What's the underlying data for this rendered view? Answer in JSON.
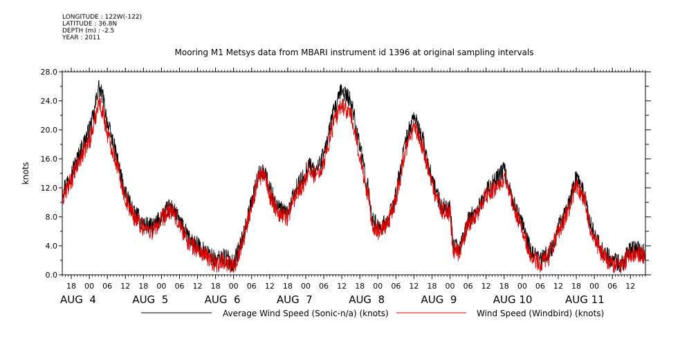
{
  "meta": {
    "longitude": "LONGITUDE : 122W(-122)",
    "latitude": "LATITUDE : 36.8N",
    "depth": "DEPTH (m) : -2.5",
    "year": "YEAR : 2011"
  },
  "chart_data": {
    "type": "line",
    "title": "Mooring M1 Metsys data from MBARI instrument id 1396 at original sampling intervals",
    "ylabel": "knots",
    "ylim": [
      0,
      28
    ],
    "yticks": [
      0,
      4,
      8,
      12,
      16,
      20,
      24,
      28
    ],
    "ytick_labels": [
      "0.0",
      "4.0",
      "8.0",
      "12.0",
      "16.0",
      "20.0",
      "24.0",
      "28.0"
    ],
    "xlim": [
      "2011-08-03T15:00",
      "2011-08-11T17:00"
    ],
    "x_hour_ticks": [
      {
        "time": "2011-08-03T18:00",
        "label": "18"
      },
      {
        "time": "2011-08-04T00:00",
        "label": "00"
      },
      {
        "time": "2011-08-04T06:00",
        "label": "06"
      },
      {
        "time": "2011-08-04T12:00",
        "label": "12"
      },
      {
        "time": "2011-08-04T18:00",
        "label": "18"
      },
      {
        "time": "2011-08-05T00:00",
        "label": "00"
      },
      {
        "time": "2011-08-05T06:00",
        "label": "06"
      },
      {
        "time": "2011-08-05T12:00",
        "label": "12"
      },
      {
        "time": "2011-08-05T18:00",
        "label": "18"
      },
      {
        "time": "2011-08-06T00:00",
        "label": "00"
      },
      {
        "time": "2011-08-06T06:00",
        "label": "06"
      },
      {
        "time": "2011-08-06T12:00",
        "label": "12"
      },
      {
        "time": "2011-08-06T18:00",
        "label": "18"
      },
      {
        "time": "2011-08-07T00:00",
        "label": "00"
      },
      {
        "time": "2011-08-07T06:00",
        "label": "06"
      },
      {
        "time": "2011-08-07T12:00",
        "label": "12"
      },
      {
        "time": "2011-08-07T18:00",
        "label": "18"
      },
      {
        "time": "2011-08-08T00:00",
        "label": "00"
      },
      {
        "time": "2011-08-08T06:00",
        "label": "06"
      },
      {
        "time": "2011-08-08T12:00",
        "label": "12"
      },
      {
        "time": "2011-08-08T18:00",
        "label": "18"
      },
      {
        "time": "2011-08-09T00:00",
        "label": "00"
      },
      {
        "time": "2011-08-09T06:00",
        "label": "06"
      },
      {
        "time": "2011-08-09T12:00",
        "label": "12"
      },
      {
        "time": "2011-08-09T18:00",
        "label": "18"
      },
      {
        "time": "2011-08-10T00:00",
        "label": "00"
      },
      {
        "time": "2011-08-10T06:00",
        "label": "06"
      },
      {
        "time": "2011-08-10T12:00",
        "label": "12"
      },
      {
        "time": "2011-08-10T18:00",
        "label": "18"
      },
      {
        "time": "2011-08-11T00:00",
        "label": "00"
      },
      {
        "time": "2011-08-11T06:00",
        "label": "06"
      },
      {
        "time": "2011-08-11T12:00",
        "label": "12"
      }
    ],
    "x_day_labels": [
      {
        "time": "2011-08-03T18:00",
        "label": "AUG  4"
      },
      {
        "time": "2011-08-04T18:00",
        "label": "AUG  5"
      },
      {
        "time": "2011-08-05T18:00",
        "label": "AUG  6"
      },
      {
        "time": "2011-08-06T18:00",
        "label": "AUG  7"
      },
      {
        "time": "2011-08-07T18:00",
        "label": "AUG  8"
      },
      {
        "time": "2011-08-08T18:00",
        "label": "AUG  9"
      },
      {
        "time": "2011-08-09T18:00",
        "label": "AUG 10"
      },
      {
        "time": "2011-08-10T18:00",
        "label": "AUG 11"
      }
    ],
    "grid": false,
    "legend_position": "bottom",
    "series": [
      {
        "name": "Average Wind Speed (Sonic-n/a) (knots)",
        "color": "#000000",
        "x": [
          "2011-08-03T15:00",
          "2011-08-03T18:00",
          "2011-08-03T21:00",
          "2011-08-04T00:00",
          "2011-08-04T01:30",
          "2011-08-04T03:00",
          "2011-08-04T04:30",
          "2011-08-04T06:00",
          "2011-08-04T09:00",
          "2011-08-04T12:00",
          "2011-08-04T15:00",
          "2011-08-04T18:00",
          "2011-08-04T21:00",
          "2011-08-05T00:00",
          "2011-08-05T03:00",
          "2011-08-05T06:00",
          "2011-08-05T09:00",
          "2011-08-05T12:00",
          "2011-08-05T15:00",
          "2011-08-05T18:00",
          "2011-08-05T21:00",
          "2011-08-06T00:00",
          "2011-08-06T03:00",
          "2011-08-06T06:00",
          "2011-08-06T08:00",
          "2011-08-06T10:00",
          "2011-08-06T12:00",
          "2011-08-06T15:00",
          "2011-08-06T18:00",
          "2011-08-06T21:00",
          "2011-08-07T00:00",
          "2011-08-07T01:00",
          "2011-08-07T03:00",
          "2011-08-07T06:00",
          "2011-08-07T09:00",
          "2011-08-07T12:00",
          "2011-08-07T15:00",
          "2011-08-07T18:00",
          "2011-08-07T20:00",
          "2011-08-07T21:00",
          "2011-08-07T22:00",
          "2011-08-08T00:00",
          "2011-08-08T03:00",
          "2011-08-08T06:00",
          "2011-08-08T07:30",
          "2011-08-08T09:00",
          "2011-08-08T12:00",
          "2011-08-08T15:00",
          "2011-08-08T18:00",
          "2011-08-08T21:00",
          "2011-08-09T00:00",
          "2011-08-09T01:00",
          "2011-08-09T03:00",
          "2011-08-09T06:00",
          "2011-08-09T09:00",
          "2011-08-09T12:00",
          "2011-08-09T15:00",
          "2011-08-09T18:00",
          "2011-08-09T21:00",
          "2011-08-10T00:00",
          "2011-08-10T03:00",
          "2011-08-10T06:00",
          "2011-08-10T09:00",
          "2011-08-10T12:00",
          "2011-08-10T15:00",
          "2011-08-10T18:00",
          "2011-08-10T21:00",
          "2011-08-10T22:00",
          "2011-08-11T00:00",
          "2011-08-11T03:00",
          "2011-08-11T06:00",
          "2011-08-11T09:00",
          "2011-08-11T12:00",
          "2011-08-11T15:00",
          "2011-08-11T17:00"
        ],
        "values": [
          11.5,
          14,
          17,
          20,
          22,
          26,
          24.5,
          21,
          16.5,
          11,
          8.5,
          7,
          6.5,
          8,
          9.5,
          7.5,
          5,
          4,
          3,
          2,
          2.5,
          1.5,
          5,
          10,
          13.5,
          14.5,
          12,
          9,
          8.5,
          12,
          14,
          15.5,
          14,
          16.5,
          22,
          25.5,
          24,
          18,
          13,
          11.5,
          8,
          6.5,
          7,
          11,
          14.5,
          18,
          22,
          18.5,
          13,
          9.5,
          9,
          4,
          3.5,
          7.5,
          9,
          11.5,
          13,
          14.5,
          10,
          7,
          3,
          2,
          3,
          6.5,
          9,
          13.5,
          11,
          8,
          5.5,
          3,
          2,
          1.5,
          3.5,
          3.5,
          3
        ]
      },
      {
        "name": "Wind Speed (Windbird) (knots)",
        "color": "#dd0000",
        "x": [
          "2011-08-03T15:00",
          "2011-08-03T18:00",
          "2011-08-03T21:00",
          "2011-08-04T00:00",
          "2011-08-04T01:30",
          "2011-08-04T03:00",
          "2011-08-04T04:30",
          "2011-08-04T06:00",
          "2011-08-04T09:00",
          "2011-08-04T12:00",
          "2011-08-04T15:00",
          "2011-08-04T18:00",
          "2011-08-04T21:00",
          "2011-08-05T00:00",
          "2011-08-05T03:00",
          "2011-08-05T06:00",
          "2011-08-05T09:00",
          "2011-08-05T12:00",
          "2011-08-05T15:00",
          "2011-08-05T18:00",
          "2011-08-05T21:00",
          "2011-08-06T00:00",
          "2011-08-06T03:00",
          "2011-08-06T06:00",
          "2011-08-06T08:00",
          "2011-08-06T10:00",
          "2011-08-06T12:00",
          "2011-08-06T15:00",
          "2011-08-06T18:00",
          "2011-08-06T21:00",
          "2011-08-07T00:00",
          "2011-08-07T01:00",
          "2011-08-07T03:00",
          "2011-08-07T06:00",
          "2011-08-07T09:00",
          "2011-08-07T12:00",
          "2011-08-07T15:00",
          "2011-08-07T18:00",
          "2011-08-07T20:00",
          "2011-08-07T21:00",
          "2011-08-07T22:00",
          "2011-08-08T00:00",
          "2011-08-08T03:00",
          "2011-08-08T06:00",
          "2011-08-08T07:30",
          "2011-08-08T09:00",
          "2011-08-08T12:00",
          "2011-08-08T15:00",
          "2011-08-08T18:00",
          "2011-08-08T21:00",
          "2011-08-09T00:00",
          "2011-08-09T01:00",
          "2011-08-09T03:00",
          "2011-08-09T06:00",
          "2011-08-09T09:00",
          "2011-08-09T12:00",
          "2011-08-09T15:00",
          "2011-08-09T18:00",
          "2011-08-09T21:00",
          "2011-08-10T00:00",
          "2011-08-10T03:00",
          "2011-08-10T06:00",
          "2011-08-10T09:00",
          "2011-08-10T12:00",
          "2011-08-10T15:00",
          "2011-08-10T18:00",
          "2011-08-10T21:00",
          "2011-08-10T22:00",
          "2011-08-11T00:00",
          "2011-08-11T03:00",
          "2011-08-11T06:00",
          "2011-08-11T09:00",
          "2011-08-11T12:00",
          "2011-08-11T15:00",
          "2011-08-11T17:00"
        ],
        "values": [
          10.5,
          13,
          16,
          18.5,
          20.5,
          24,
          22.5,
          19.5,
          15.5,
          10.5,
          8,
          6.5,
          6,
          7.5,
          9,
          7,
          4.5,
          3.5,
          2.5,
          1.5,
          2,
          1,
          4.5,
          9.5,
          13,
          14,
          11,
          8.5,
          8,
          11.5,
          13,
          15,
          13.5,
          15.5,
          20.5,
          23.5,
          22,
          16.5,
          12,
          11,
          7,
          6,
          6.5,
          10.5,
          13.5,
          17,
          20.5,
          17.5,
          12.5,
          9,
          8.5,
          3.5,
          3,
          7,
          8.5,
          11,
          12,
          13.5,
          9.5,
          6.5,
          2.5,
          1.5,
          2.5,
          6,
          8.5,
          12.5,
          10,
          7.5,
          5,
          2.5,
          1.5,
          1,
          3,
          3,
          2.5
        ]
      }
    ]
  }
}
